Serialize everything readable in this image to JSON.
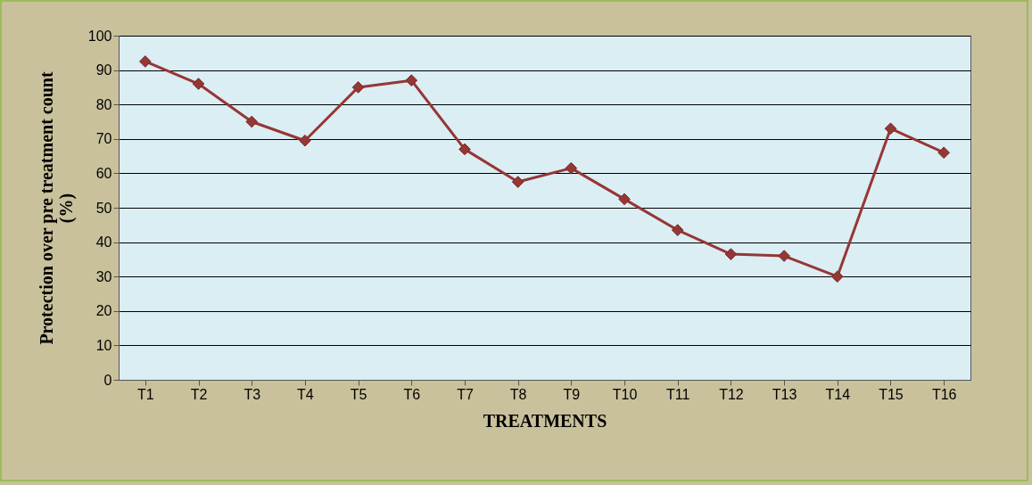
{
  "chart_data": {
    "type": "line",
    "xlabel": "TREATMENTS",
    "ylabel": "Protection over pre treatment count (%)",
    "categories": [
      "T1",
      "T2",
      "T3",
      "T4",
      "T5",
      "T6",
      "T7",
      "T8",
      "T9",
      "T10",
      "T11",
      "T12",
      "T13",
      "T14",
      "T15",
      "T16"
    ],
    "series": [
      {
        "color": "#953735",
        "values": [
          92.5,
          86,
          75,
          69.5,
          85,
          87,
          67,
          57.5,
          61.5,
          52.5,
          43.5,
          36.5,
          36,
          30,
          73,
          66
        ]
      }
    ],
    "ylim": [
      0,
      100
    ],
    "yticks": [
      0,
      10,
      20,
      30,
      40,
      50,
      60,
      70,
      80,
      90,
      100
    ],
    "grid": "y",
    "marker": "diamond",
    "line_style": "solid"
  }
}
